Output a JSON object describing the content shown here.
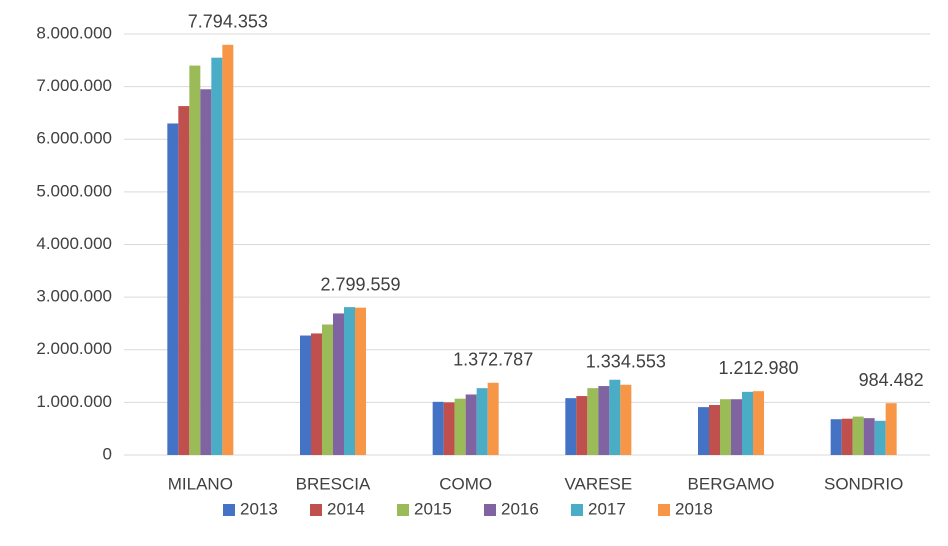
{
  "chart_data": {
    "type": "bar",
    "categories": [
      "MILANO",
      "BRESCIA",
      "COMO",
      "VARESE",
      "BERGAMO",
      "SONDRIO"
    ],
    "series": [
      {
        "name": "2013",
        "color": "#4472c4",
        "values": [
          6300000,
          2270000,
          1010000,
          1080000,
          910000,
          680000
        ]
      },
      {
        "name": "2014",
        "color": "#c0504d",
        "values": [
          6630000,
          2310000,
          1000000,
          1120000,
          950000,
          690000
        ]
      },
      {
        "name": "2015",
        "color": "#9bbb59",
        "values": [
          7400000,
          2480000,
          1070000,
          1270000,
          1060000,
          730000
        ]
      },
      {
        "name": "2016",
        "color": "#8064a2",
        "values": [
          6950000,
          2690000,
          1150000,
          1310000,
          1060000,
          700000
        ]
      },
      {
        "name": "2017",
        "color": "#4bacc6",
        "values": [
          7550000,
          2810000,
          1270000,
          1430000,
          1200000,
          650000
        ]
      },
      {
        "name": "2018",
        "color": "#f79646",
        "values": [
          7794353,
          2799559,
          1372787,
          1334553,
          1212980,
          984482
        ],
        "value_labels": [
          "7.794.353",
          "2.799.559",
          "1.372.787",
          "1.334.553",
          "1.212.980",
          "984.482"
        ]
      }
    ],
    "ylim": [
      0,
      8000000
    ],
    "yticks": [
      0,
      {
        "value": 1000000,
        "label": "1.000.000"
      },
      {
        "value": 2000000,
        "label": "2.000.000"
      },
      {
        "value": 3000000,
        "label": "3.000.000"
      },
      {
        "value": 4000000,
        "label": "4.000.000"
      },
      {
        "value": 5000000,
        "label": "5.000.000"
      },
      {
        "value": 6000000,
        "label": "6.000.000"
      },
      {
        "value": 7000000,
        "label": "7.000.000"
      },
      {
        "value": 8000000,
        "label": "8.000.000"
      }
    ],
    "grid": true,
    "legend": "bottom"
  }
}
